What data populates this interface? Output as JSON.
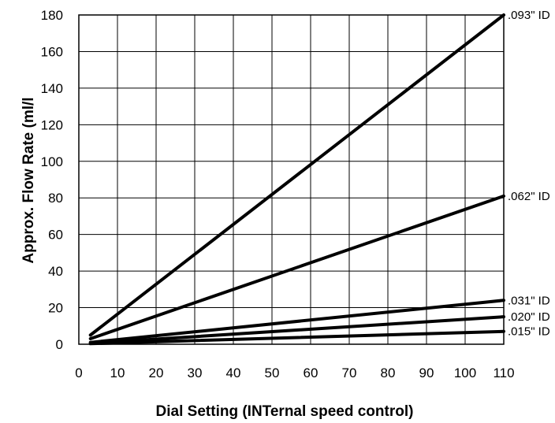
{
  "chart_data": {
    "type": "line",
    "title": "",
    "xlabel": "Dial Setting (INTernal speed control)",
    "ylabel": "Approx. Flow Rate (ml/l",
    "xlim": [
      0,
      110
    ],
    "ylim": [
      0,
      180
    ],
    "x_ticks": [
      0,
      10,
      20,
      30,
      40,
      50,
      60,
      70,
      80,
      90,
      100,
      110
    ],
    "y_ticks": [
      0,
      20,
      40,
      60,
      80,
      100,
      120,
      140,
      160,
      180
    ],
    "grid": true,
    "legend": "none (series labeled at right end of lines)",
    "line_color": "#000000",
    "series": [
      {
        "name": ".093\" ID",
        "x": [
          3,
          110
        ],
        "y": [
          5,
          180
        ]
      },
      {
        "name": ".062\" ID",
        "x": [
          3,
          110
        ],
        "y": [
          3,
          81
        ]
      },
      {
        "name": ".031\" ID",
        "x": [
          3,
          110
        ],
        "y": [
          1,
          24
        ]
      },
      {
        "name": ".020\" ID",
        "x": [
          3,
          110
        ],
        "y": [
          0.5,
          15
        ]
      },
      {
        "name": ".015\" ID",
        "x": [
          3,
          110
        ],
        "y": [
          0.3,
          7
        ]
      }
    ]
  }
}
